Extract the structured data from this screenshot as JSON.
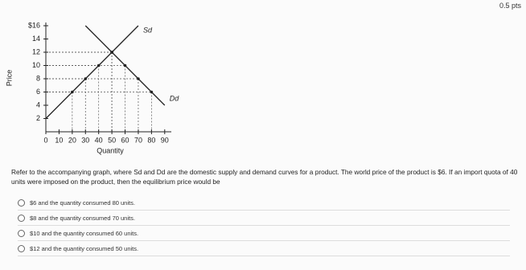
{
  "points": "0.5 pts",
  "chart_data": {
    "type": "line",
    "x_label": "Quantity",
    "y_label": "Price",
    "xlim": [
      0,
      95
    ],
    "ylim": [
      0,
      16
    ],
    "xticks": [
      0,
      10,
      20,
      30,
      40,
      50,
      60,
      70,
      80,
      90
    ],
    "yticks": [
      2,
      4,
      6,
      8,
      10,
      12,
      14,
      {
        "value": 16,
        "label": "$16"
      }
    ],
    "series": [
      {
        "name": "Sd",
        "color": "#222",
        "x": [
          0,
          20,
          30,
          40,
          50,
          70
        ],
        "values": [
          2,
          6,
          8,
          10,
          12,
          16
        ]
      },
      {
        "name": "Dd",
        "color": "#222",
        "x": [
          30,
          50,
          60,
          70,
          80,
          90
        ],
        "values": [
          16,
          12,
          10,
          8,
          6,
          4
        ]
      }
    ]
  },
  "question": "Refer to the accompanying graph, where Sd and Dd are the domestic supply and demand curves for a product. The world price of the product is $6. If an import quota of 40 units were imposed on the product, then the equilibrium price would be",
  "options": [
    "$6 and the quantity consumed 80 units.",
    "$8 and the quantity consumed 70 units.",
    "$10 and the quantity consumed 60 units.",
    "$12 and the quantity consumed 50 units."
  ]
}
